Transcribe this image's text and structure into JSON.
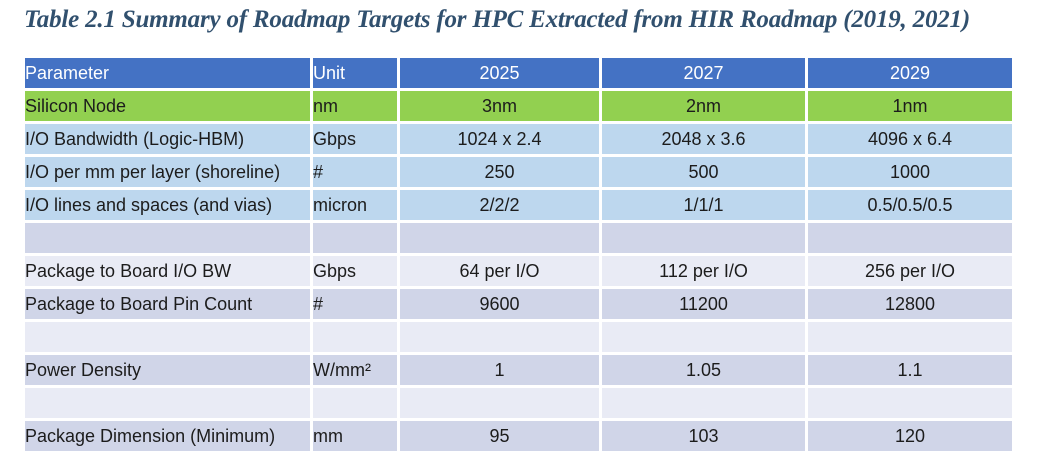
{
  "title": "Table 2.1 Summary of Roadmap Targets for HPC Extracted from HIR Roadmap (2019, 2021)",
  "colors": {
    "header_bg": "#4472C4",
    "header_text": "#FFFFFF",
    "green_row": "#92D050",
    "blue_row": "#BDD7EE",
    "lavender_dark": "#D0D5E8",
    "lavender_light": "#E9EBF5",
    "title_text": "#31506E",
    "body_text": "#1C1C1C"
  },
  "chart_data": {
    "type": "table",
    "title": "Table 2.1 Summary of Roadmap Targets for HPC Extracted from HIR Roadmap (2019, 2021)",
    "columns": [
      "Parameter",
      "Unit",
      "2025",
      "2027",
      "2029"
    ],
    "rows": [
      [
        "Silicon Node",
        "nm",
        "3nm",
        "2nm",
        "1nm"
      ],
      [
        "I/O Bandwidth (Logic-HBM)",
        "Gbps",
        "1024 x 2.4",
        "2048 x 3.6",
        "4096 x 6.4"
      ],
      [
        "I/O per mm per layer (shoreline)",
        "#",
        "250",
        "500",
        "1000"
      ],
      [
        "I/O lines and spaces (and vias)",
        "micron",
        "2/2/2",
        "1/1/1",
        "0.5/0.5/0.5"
      ],
      [
        "",
        "",
        "",
        "",
        ""
      ],
      [
        "Package to Board I/O BW",
        "Gbps",
        "64 per I/O",
        "112 per I/O",
        "256 per I/O"
      ],
      [
        "Package to Board Pin Count",
        "#",
        "9600",
        "11200",
        "12800"
      ],
      [
        "",
        "",
        "",
        "",
        ""
      ],
      [
        "Power Density",
        "W/mm²",
        "1",
        "1.05",
        "1.1"
      ],
      [
        "",
        "",
        "",
        "",
        ""
      ],
      [
        "Package Dimension (Minimum)",
        "mm",
        "95",
        "103",
        "120"
      ]
    ]
  },
  "table": {
    "columns": [
      "Parameter",
      "Unit",
      "2025",
      "2027",
      "2029"
    ],
    "rows": [
      {
        "style": "green",
        "param": "Silicon Node",
        "unit": "nm",
        "v2025": "3nm",
        "v2027": "2nm",
        "v2029": "1nm"
      },
      {
        "style": "blue",
        "param": "I/O Bandwidth (Logic-HBM)",
        "unit": "Gbps",
        "v2025": "1024 x 2.4",
        "v2027": "2048 x 3.6",
        "v2029": "4096 x 6.4"
      },
      {
        "style": "blue",
        "param": "I/O per mm per layer (shoreline)",
        "unit": "#",
        "v2025": "250",
        "v2027": "500",
        "v2029": "1000"
      },
      {
        "style": "blue",
        "param": "I/O lines and spaces (and vias)",
        "unit": "micron",
        "v2025": "2/2/2",
        "v2027": "1/1/1",
        "v2029": "0.5/0.5/0.5"
      },
      {
        "style": "lav-dark",
        "param": "",
        "unit": "",
        "v2025": "",
        "v2027": "",
        "v2029": ""
      },
      {
        "style": "lav-light",
        "param": "Package to Board I/O BW",
        "unit": "Gbps",
        "v2025": "64 per I/O",
        "v2027": "112 per I/O",
        "v2029": "256 per I/O"
      },
      {
        "style": "lav-dark",
        "param": "Package to Board Pin Count",
        "unit": "#",
        "v2025": "9600",
        "v2027": "11200",
        "v2029": "12800"
      },
      {
        "style": "lav-light",
        "param": "",
        "unit": "",
        "v2025": "",
        "v2027": "",
        "v2029": ""
      },
      {
        "style": "lav-dark",
        "param": "Power Density",
        "unit": "W/mm²",
        "v2025": "1",
        "v2027": "1.05",
        "v2029": "1.1"
      },
      {
        "style": "lav-light",
        "param": "",
        "unit": "",
        "v2025": "",
        "v2027": "",
        "v2029": ""
      },
      {
        "style": "lav-dark",
        "param": "Package Dimension (Minimum)",
        "unit": "mm",
        "v2025": "95",
        "v2027": "103",
        "v2029": "120"
      }
    ]
  }
}
